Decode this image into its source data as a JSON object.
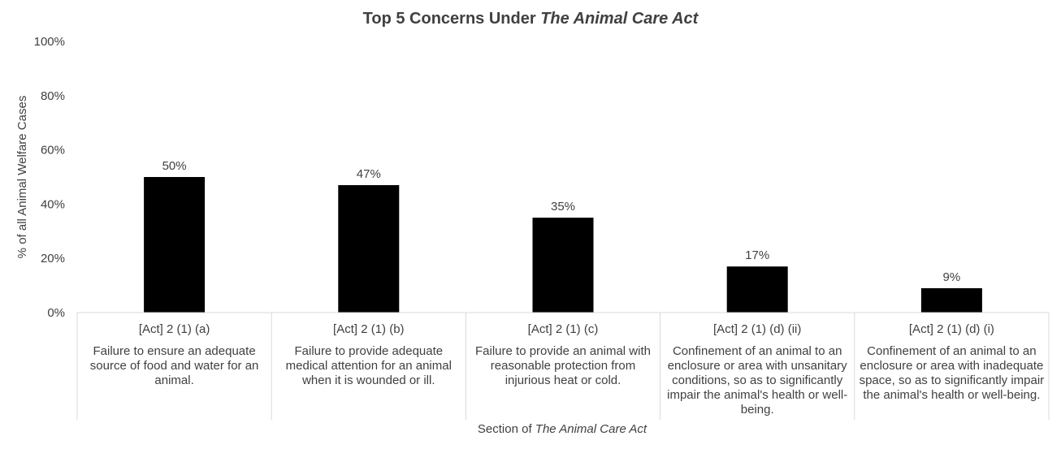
{
  "chart_data": {
    "type": "bar",
    "title_prefix": "Top 5 Concerns Under ",
    "title_italic": "The Animal Care Act",
    "ylabel": "% of all Animal Welfare Cases",
    "xlabel_prefix": "Section of ",
    "xlabel_italic": "The Animal Care Act",
    "ylim": [
      0,
      100
    ],
    "yticks": [
      0,
      20,
      40,
      60,
      80,
      100
    ],
    "ytick_labels": [
      "0%",
      "20%",
      "40%",
      "60%",
      "80%",
      "100%"
    ],
    "categories": [
      "[Act] 2 (1) (a)",
      "[Act] 2 (1) (b)",
      "[Act] 2 (1) (c)",
      "[Act] 2 (1) (d) (ii)",
      "[Act] 2 (1) (d) (i)"
    ],
    "descriptions": [
      "Failure to ensure an adequate source of food and water for an animal.",
      "Failure to provide adequate medical attention for an animal when it is wounded or ill.",
      "Failure to provide an animal with reasonable protection from injurious heat or cold.",
      "Confinement of an animal to an enclosure or area with unsanitary conditions, so as to significantly impair the animal's health or well-being.",
      "Confinement of an animal to an enclosure or area with inadequate space, so as to significantly impair the animal's health or well-being."
    ],
    "values": [
      50,
      47,
      35,
      17,
      9
    ],
    "data_labels": [
      "50%",
      "47%",
      "35%",
      "17%",
      "9%"
    ],
    "bar_color": "#000000",
    "grid": false,
    "legend": "none"
  }
}
